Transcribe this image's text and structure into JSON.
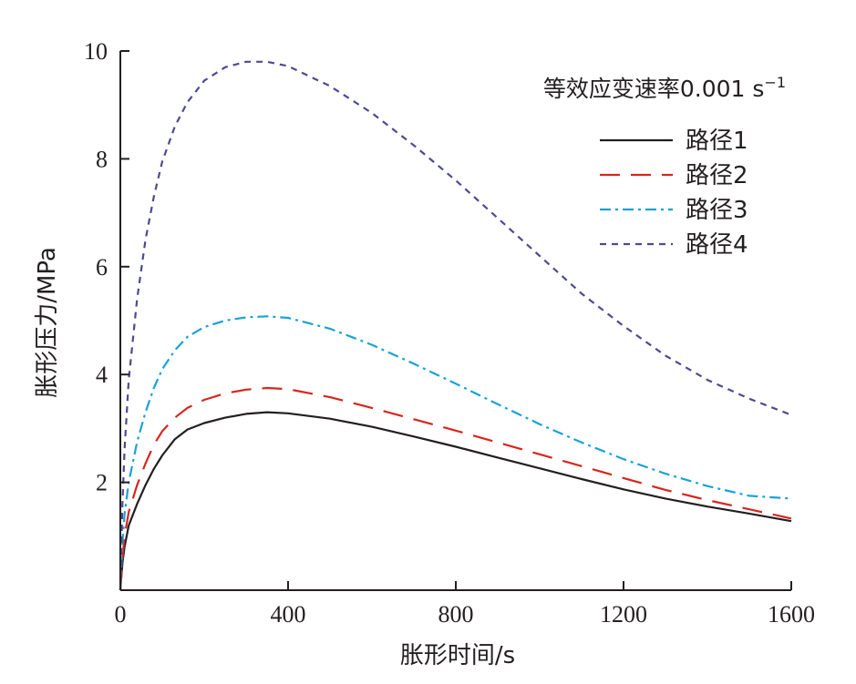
{
  "chart_data": {
    "type": "line",
    "xlabel": "胀形时间/s",
    "ylabel": "胀形压力/MPa",
    "xlim": [
      0,
      1600
    ],
    "ylim": [
      0,
      10
    ],
    "x_ticks": [
      0,
      400,
      800,
      1200,
      1600
    ],
    "y_ticks": [
      2,
      4,
      6,
      8,
      10
    ],
    "grid": false,
    "legend_position": "top-right",
    "legend_title": "等效应变速率0.001 s",
    "legend_title_superscript": "−1",
    "series": [
      {
        "name": "路径1",
        "color": "#231f20",
        "dash": "solid",
        "x": [
          0,
          5,
          10,
          20,
          40,
          60,
          80,
          100,
          130,
          160,
          200,
          250,
          300,
          350,
          400,
          500,
          600,
          700,
          800,
          900,
          1000,
          1100,
          1200,
          1300,
          1400,
          1500,
          1600
        ],
        "y": [
          0,
          0.5,
          0.8,
          1.2,
          1.6,
          1.95,
          2.25,
          2.5,
          2.8,
          2.98,
          3.1,
          3.2,
          3.27,
          3.3,
          3.28,
          3.18,
          3.03,
          2.85,
          2.66,
          2.46,
          2.26,
          2.06,
          1.87,
          1.7,
          1.55,
          1.42,
          1.28
        ]
      },
      {
        "name": "路径2",
        "color": "#d7261e",
        "dash": "long-dash",
        "x": [
          0,
          5,
          10,
          20,
          40,
          60,
          80,
          100,
          130,
          160,
          200,
          250,
          300,
          350,
          400,
          500,
          600,
          700,
          800,
          900,
          1000,
          1100,
          1200,
          1300,
          1400,
          1500,
          1600
        ],
        "y": [
          0,
          0.6,
          1.0,
          1.45,
          1.95,
          2.35,
          2.7,
          2.95,
          3.2,
          3.38,
          3.53,
          3.65,
          3.72,
          3.75,
          3.73,
          3.58,
          3.38,
          3.17,
          2.96,
          2.74,
          2.52,
          2.3,
          2.08,
          1.86,
          1.67,
          1.5,
          1.33
        ]
      },
      {
        "name": "路径3",
        "color": "#1ba2d6",
        "dash": "dash-dot",
        "x": [
          0,
          5,
          10,
          20,
          40,
          60,
          80,
          100,
          130,
          160,
          200,
          250,
          300,
          350,
          400,
          500,
          600,
          700,
          800,
          900,
          1000,
          1100,
          1200,
          1300,
          1400,
          1500,
          1600
        ],
        "y": [
          0,
          0.9,
          1.4,
          2.0,
          2.75,
          3.3,
          3.75,
          4.1,
          4.45,
          4.7,
          4.88,
          5.0,
          5.06,
          5.08,
          5.05,
          4.85,
          4.55,
          4.2,
          3.83,
          3.45,
          3.08,
          2.74,
          2.43,
          2.16,
          1.93,
          1.75,
          1.7
        ]
      },
      {
        "name": "路径4",
        "color": "#4e4a8f",
        "dash": "short-dash",
        "x": [
          0,
          5,
          10,
          20,
          40,
          60,
          80,
          100,
          130,
          160,
          200,
          250,
          300,
          350,
          400,
          500,
          600,
          700,
          800,
          900,
          1000,
          1100,
          1200,
          1300,
          1400,
          1500,
          1600
        ],
        "y": [
          0,
          1.6,
          2.6,
          3.9,
          5.4,
          6.5,
          7.3,
          7.95,
          8.6,
          9.05,
          9.45,
          9.7,
          9.8,
          9.8,
          9.72,
          9.35,
          8.85,
          8.25,
          7.6,
          6.9,
          6.2,
          5.5,
          4.9,
          4.35,
          3.9,
          3.55,
          3.25
        ]
      }
    ]
  }
}
